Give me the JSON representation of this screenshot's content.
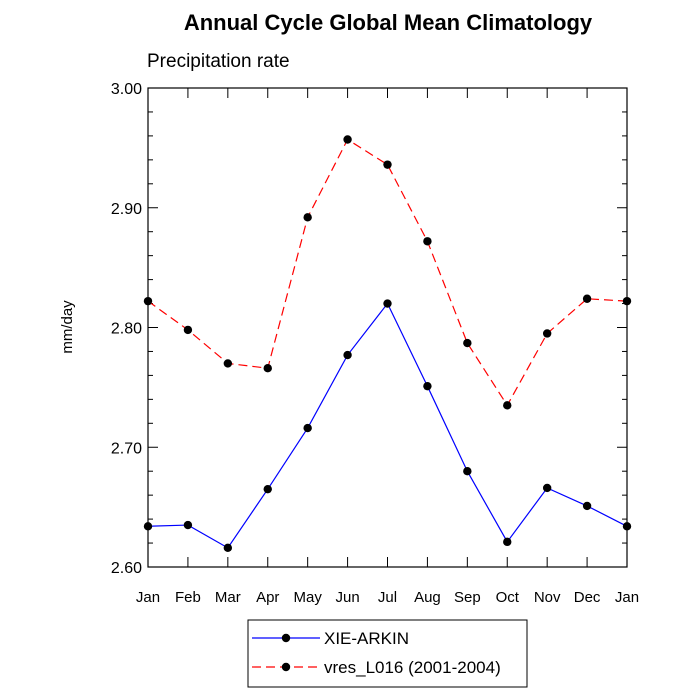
{
  "chart_data": {
    "type": "line",
    "title": "Annual Cycle Global Mean Climatology",
    "subtitle": "Precipitation rate",
    "ylabel": "mm/day",
    "xlabel": "",
    "categories": [
      "Jan",
      "Feb",
      "Mar",
      "Apr",
      "May",
      "Jun",
      "Jul",
      "Aug",
      "Sep",
      "Oct",
      "Nov",
      "Dec",
      "Jan"
    ],
    "ylim": [
      2.6,
      3.0
    ],
    "yticks": [
      "2.60",
      "2.70",
      "2.80",
      "2.90",
      "3.00"
    ],
    "legend_position": "bottom",
    "series": [
      {
        "name": "XIE-ARKIN",
        "color": "#0000ff",
        "dash": "solid",
        "values": [
          2.634,
          2.635,
          2.616,
          2.665,
          2.716,
          2.777,
          2.82,
          2.751,
          2.68,
          2.621,
          2.666,
          2.651,
          2.634
        ]
      },
      {
        "name": "vres_L016 (2001-2004)",
        "color": "#ff0000",
        "dash": "dashed",
        "values": [
          2.822,
          2.798,
          2.77,
          2.766,
          2.892,
          2.957,
          2.936,
          2.872,
          2.787,
          2.735,
          2.795,
          2.824,
          2.822
        ]
      }
    ]
  }
}
